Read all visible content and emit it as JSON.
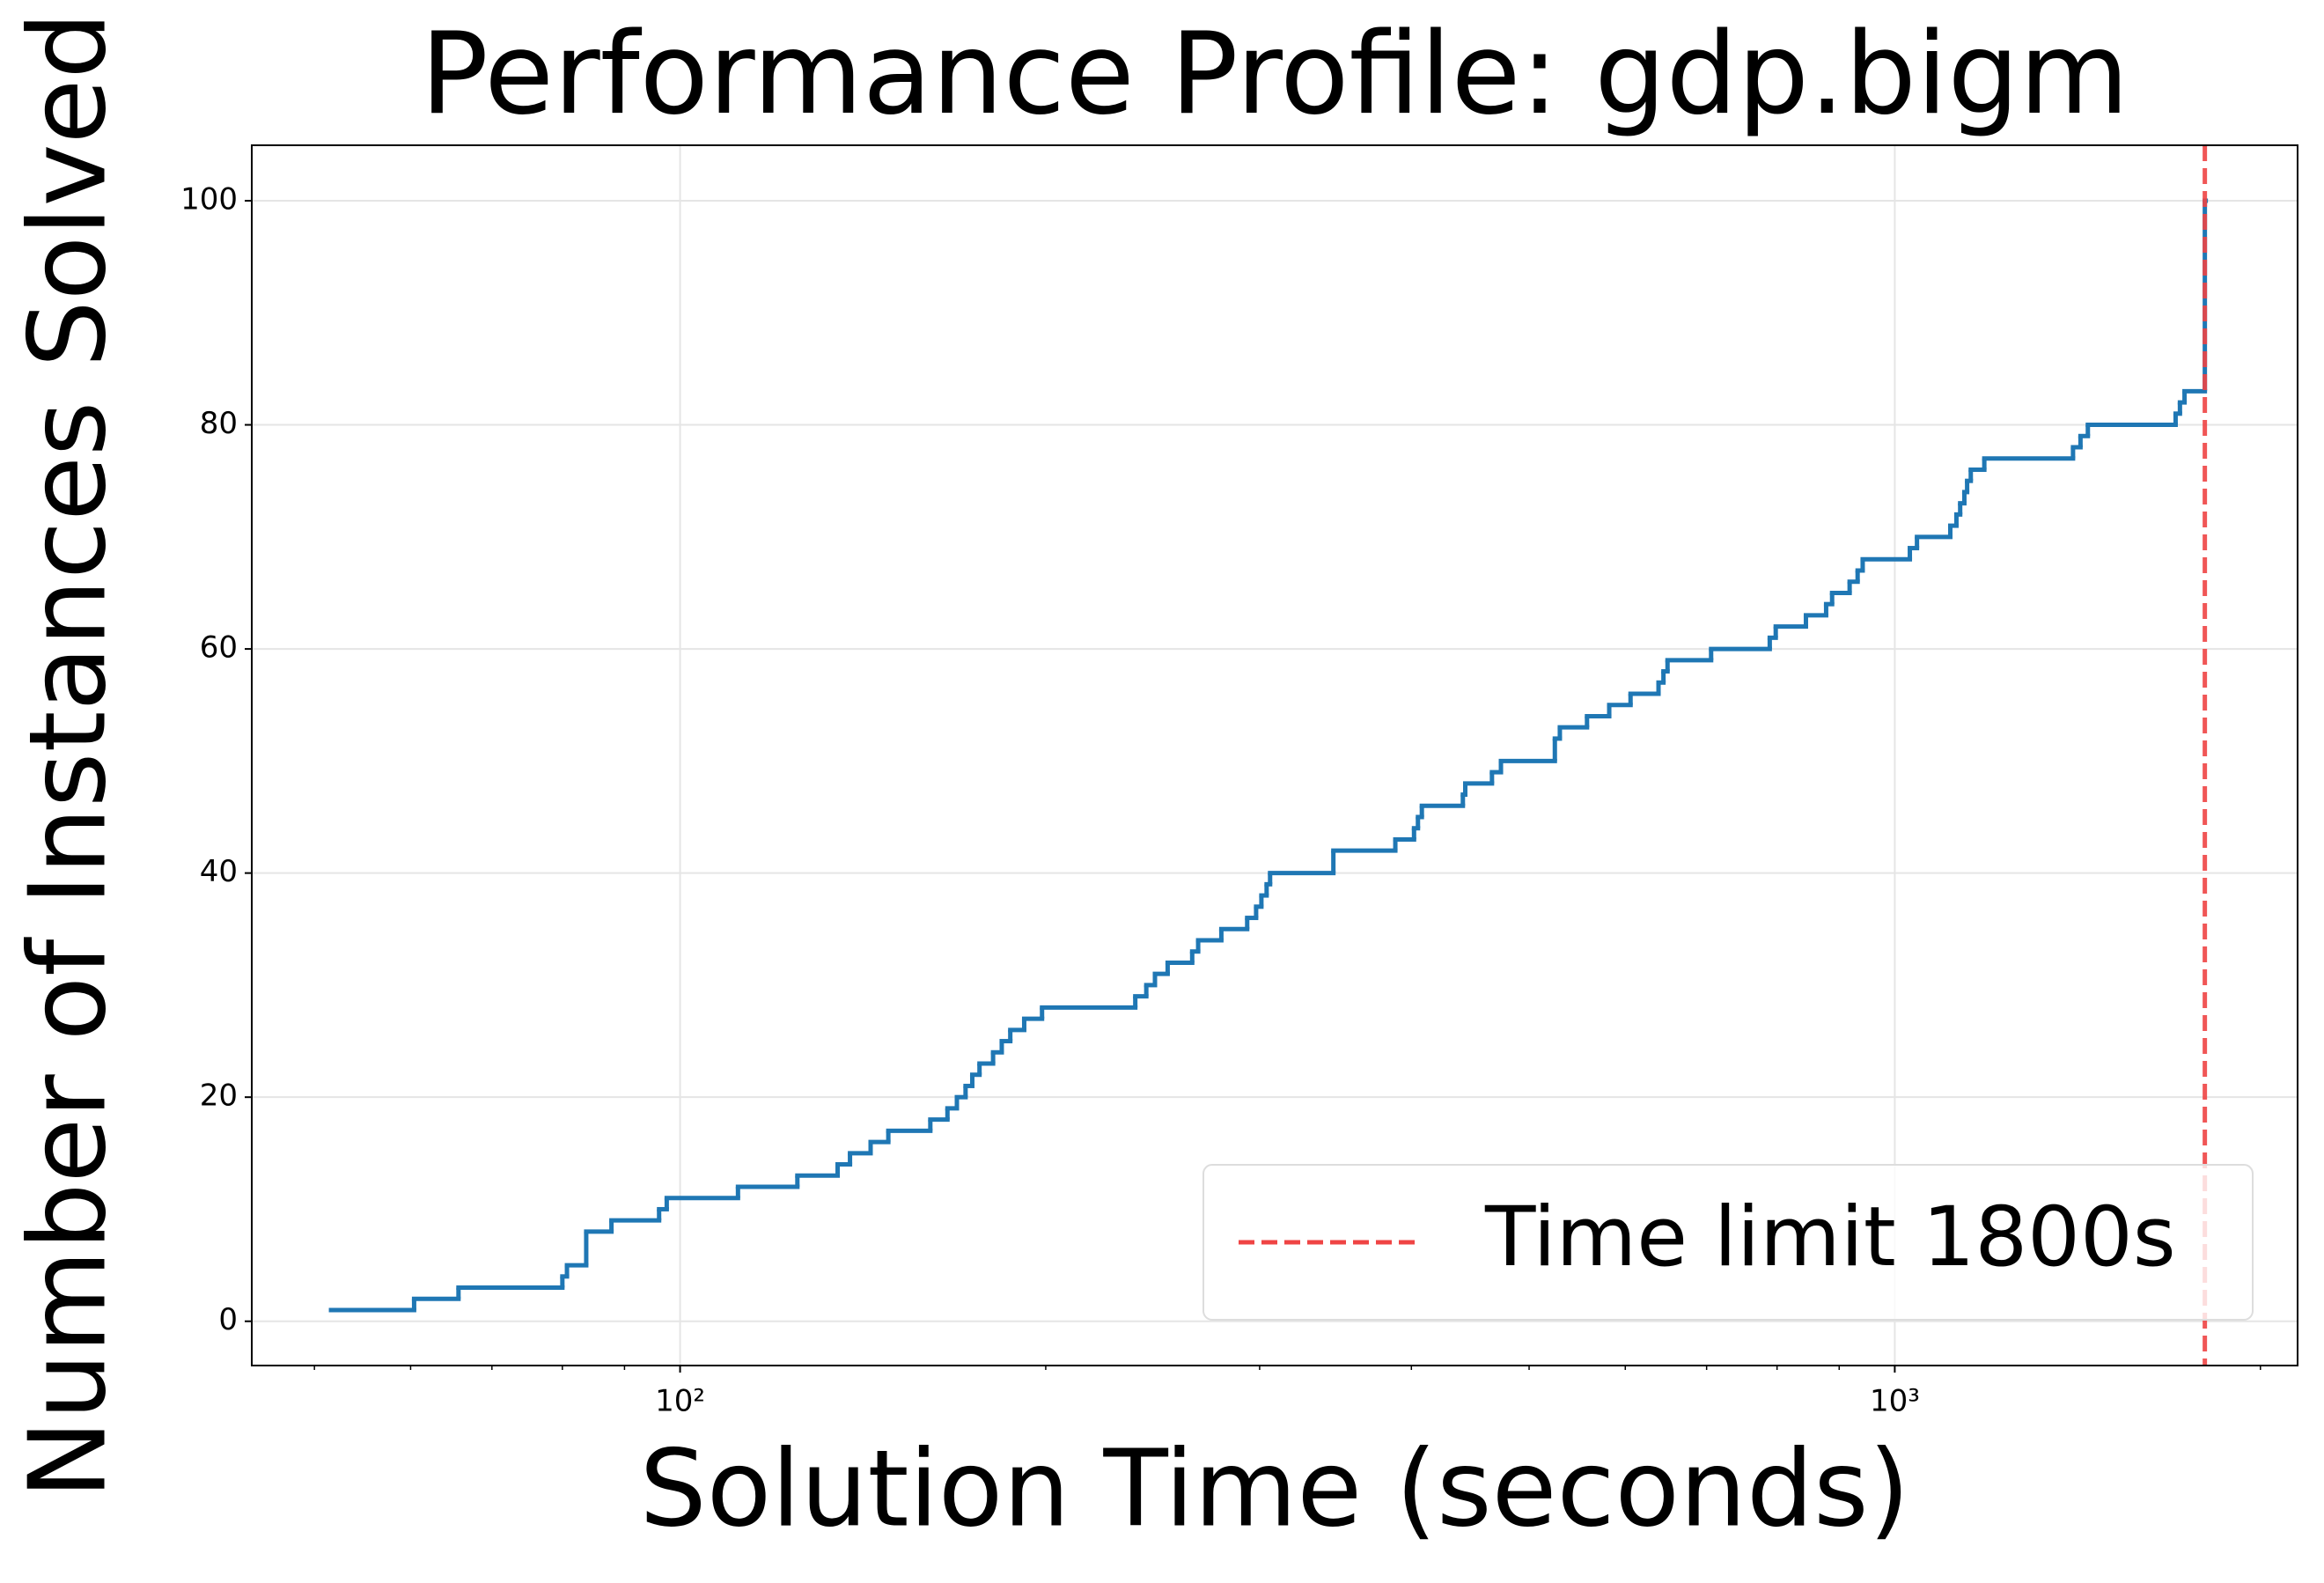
{
  "chart_data": {
    "type": "step",
    "title": "Performance Profile: gdp.bigm",
    "x_label": "Solution Time (seconds)",
    "y_label": "Number of Instances Solved",
    "x_scale": "log",
    "series": [
      {
        "name": "gdp.bigm",
        "color": "#1f77b4",
        "x": [
          51.6,
          60.4,
          65.7,
          80,
          80.7,
          83.7,
          87.8,
          96.1,
          97.5,
          111.6,
          124.9,
          134.8,
          138,
          143.5,
          148.4,
          160.7,
          166,
          169,
          171.8,
          174,
          176.4,
          181,
          184,
          187,
          192,
          198.6,
          237,
          242,
          246,
          252,
          264,
          267,
          279,
          293,
          298,
          301,
          304,
          306,
          345,
          388,
          402,
          405,
          408,
          441,
          443,
          466,
          474,
          525,
          530,
          558,
          582,
          606,
          639,
          645,
          650,
          706,
          789,
          798,
          845,
          878,
          888,
          918,
          932,
          941,
          1029,
          1043,
          1111,
          1124,
          1132,
          1141,
          1147,
          1155,
          1185,
          1402,
          1422,
          1442,
          1703,
          1717,
          1732,
          1800
        ],
        "values": [
          1,
          2,
          3,
          4,
          5,
          8,
          9,
          10,
          11,
          12,
          13,
          14,
          15,
          16,
          17,
          18,
          19,
          20,
          21,
          22,
          23,
          24,
          25,
          26,
          27,
          28,
          29,
          30,
          31,
          32,
          33,
          34,
          35,
          36,
          37,
          38,
          39,
          40,
          42,
          43,
          44,
          45,
          46,
          47,
          48,
          49,
          50,
          52,
          53,
          54,
          55,
          56,
          57,
          58,
          59,
          60,
          61,
          62,
          63,
          64,
          65,
          66,
          67,
          68,
          69,
          70,
          71,
          72,
          73,
          74,
          75,
          76,
          77,
          78,
          79,
          80,
          81,
          82,
          83,
          100
        ]
      }
    ],
    "vline": {
      "x": 1800,
      "label": "Time limit 1800s",
      "color": "#ef4444"
    },
    "legend": "lower right",
    "xlim": [
      44.4,
      2146
    ],
    "ylim": [
      -3.95,
      104.95
    ],
    "xticks": [
      {
        "value": 100,
        "label": "10²"
      },
      {
        "value": 1000,
        "label": "10³"
      }
    ],
    "xminorticks": [
      50,
      60,
      70,
      80,
      90,
      200,
      300,
      400,
      500,
      600,
      700,
      800,
      900,
      2000
    ],
    "yticks": [
      0,
      20,
      40,
      60,
      80,
      100
    ],
    "grid": true
  }
}
